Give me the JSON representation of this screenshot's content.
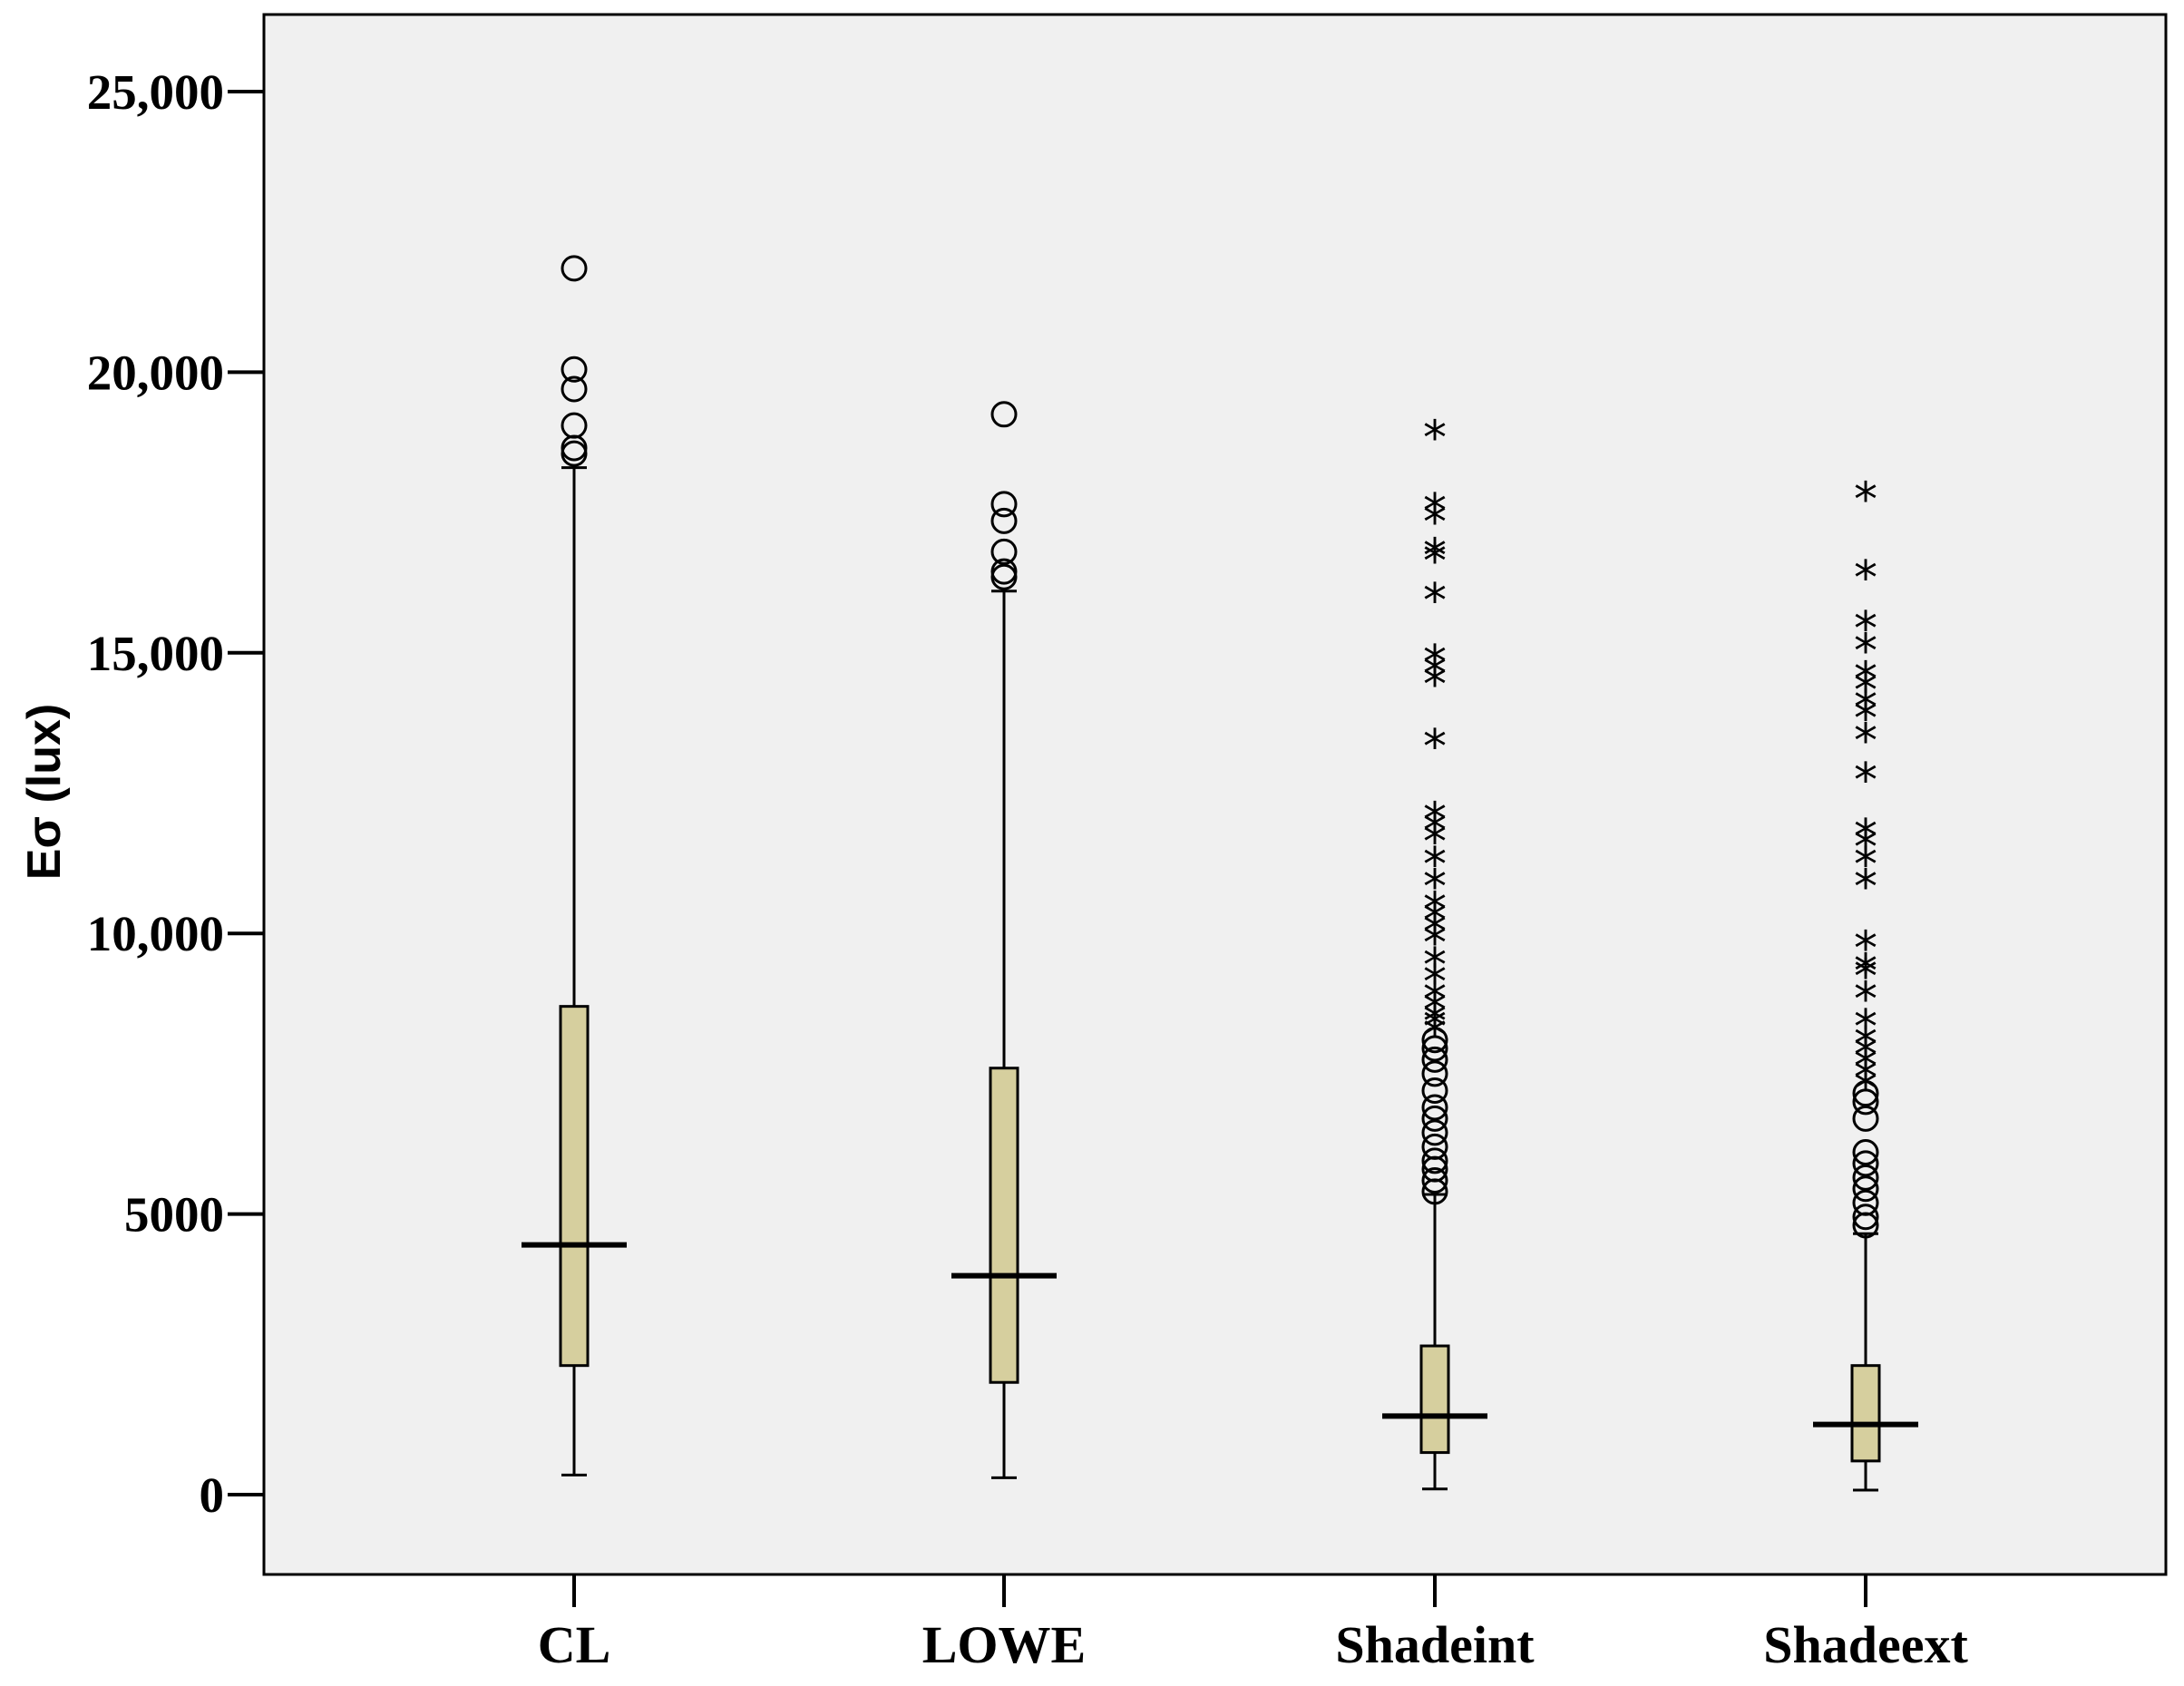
{
  "chart_data": {
    "type": "boxplot",
    "title": "",
    "xlabel": "",
    "ylabel": "Eσ (lux)",
    "ylim": [
      -1300,
      26400
    ],
    "y_ticks": [
      {
        "value": 0,
        "label": "0"
      },
      {
        "value": 5000,
        "label": "5000"
      },
      {
        "value": 10000,
        "label": "10,000"
      },
      {
        "value": 15000,
        "label": "15,000"
      },
      {
        "value": 20000,
        "label": "20,000"
      },
      {
        "value": 25000,
        "label": "25,000"
      }
    ],
    "categories": [
      "CL",
      "LOWE",
      "Shadeint",
      "Shadeext"
    ],
    "box_color": "#d6cf9e",
    "plot_background": "#f0f0f0",
    "boxes": [
      {
        "name": "CL",
        "min": 350,
        "q1": 2300,
        "median": 4450,
        "q3": 8700,
        "max": 18300,
        "outliers": [
          21850,
          20050,
          19700,
          19050,
          18650,
          18550
        ],
        "extremes": []
      },
      {
        "name": "LOWE",
        "min": 300,
        "q1": 2000,
        "median": 3900,
        "q3": 7600,
        "max": 16100,
        "outliers": [
          19250,
          17650,
          17350,
          16800,
          16450,
          16350
        ],
        "extremes": []
      },
      {
        "name": "Shadeint",
        "min": 100,
        "q1": 750,
        "median": 1400,
        "q3": 2650,
        "max": 5350,
        "outliers": [
          5400,
          5600,
          5800,
          5950,
          6200,
          6450,
          6700,
          6900,
          7200,
          7500,
          7750,
          7950,
          8100
        ],
        "extremes": [
          8250,
          8400,
          8500,
          8700,
          8900,
          9200,
          9500,
          9900,
          10100,
          10300,
          10500,
          10900,
          11300,
          11700,
          11900,
          12100,
          13400,
          14500,
          14700,
          14900,
          16000,
          16700,
          16800,
          17400,
          17600,
          18900
        ]
      },
      {
        "name": "Shadeext",
        "min": 80,
        "q1": 600,
        "median": 1250,
        "q3": 2300,
        "max": 4650,
        "outliers": [
          4800,
          4950,
          5200,
          5450,
          5650,
          5900,
          6100,
          6700,
          7000,
          7150
        ],
        "extremes": [
          7300,
          7500,
          7700,
          7900,
          8100,
          8400,
          8900,
          9300,
          9400,
          9800,
          10900,
          11300,
          11600,
          11800,
          12800,
          13500,
          13900,
          14100,
          14400,
          14600,
          15100,
          15500,
          16400,
          17800
        ]
      }
    ]
  }
}
